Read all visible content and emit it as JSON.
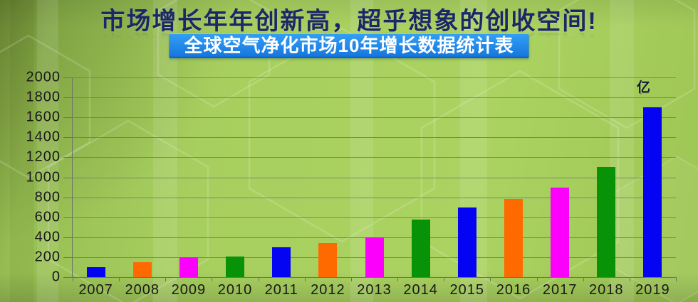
{
  "page": {
    "title": "市场增长年年创新高，超乎想象的创收空间!",
    "subtitle_banner": "全球空气净化市场10年增长数据统计表",
    "unit_label": "亿"
  },
  "colors": {
    "title_text": "#1b2766",
    "banner_bg_top": "#34a0f4",
    "banner_bg_bottom": "#1474de",
    "banner_text": "#ffffff",
    "background_base": "#a7cf5f",
    "grid_line": "#707664",
    "axis_line": "#6e7464",
    "tick_label": "#181818",
    "bar_blue": "#0404f2",
    "bar_orange": "#ff6a00",
    "bar_magenta": "#fb00fb",
    "bar_green": "#079207"
  },
  "chart_data": {
    "type": "bar",
    "title": "全球空气净化市场10年增长数据统计表",
    "unit": "亿",
    "categories": [
      "2007",
      "2008",
      "2009",
      "2010",
      "2011",
      "2012",
      "2013",
      "2014",
      "2015",
      "2016",
      "2017",
      "2018",
      "2019"
    ],
    "values": [
      100,
      150,
      200,
      210,
      300,
      340,
      400,
      580,
      700,
      780,
      900,
      1100,
      1700
    ],
    "color_cycle": [
      "#0404f2",
      "#ff6a00",
      "#fb00fb",
      "#079207"
    ],
    "xlabel": "",
    "ylabel": "",
    "ylim": [
      0,
      2000
    ],
    "ytick_step": 200,
    "grid": true,
    "legend": "none"
  }
}
